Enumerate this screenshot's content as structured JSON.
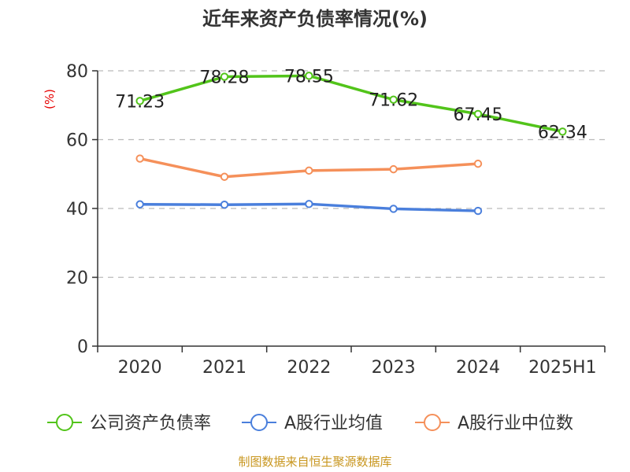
{
  "chart_data": {
    "type": "line",
    "title": "近年来资产负债率情况(%)",
    "ylabel": "(%)",
    "categories": [
      "2020",
      "2021",
      "2022",
      "2023",
      "2024",
      "2025H1"
    ],
    "ylim": [
      0,
      80
    ],
    "yticks": [
      "0",
      "20",
      "40",
      "60",
      "80"
    ],
    "grid": true,
    "legend_position": "bottom",
    "series": [
      {
        "name": "公司资产负债率",
        "color": "#52c41a",
        "values": [
          71.23,
          78.28,
          78.55,
          71.62,
          67.45,
          62.34
        ],
        "labels": [
          "71.23",
          "78.28",
          "78.55",
          "71.62",
          "67.45",
          "62.34"
        ]
      },
      {
        "name": "A股行业均值",
        "color": "#4a7fdc",
        "values": [
          41.2,
          41.1,
          41.3,
          39.9,
          39.3,
          null
        ]
      },
      {
        "name": "A股行业中位数",
        "color": "#f5905a",
        "values": [
          54.5,
          49.2,
          51.0,
          51.4,
          53.0,
          null
        ]
      }
    ],
    "source": "制图数据来自恒生聚源数据库"
  }
}
